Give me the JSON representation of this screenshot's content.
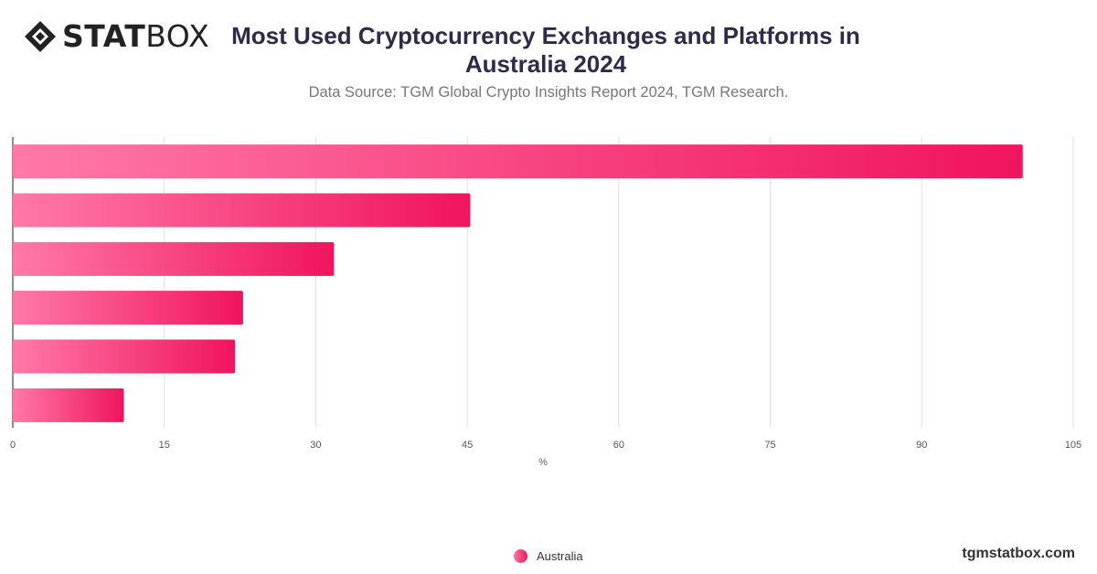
{
  "brand": {
    "logo_prefix": "STAT",
    "logo_suffix": "BOX",
    "website": "tgmstatbox.com"
  },
  "header": {
    "title": "Most Used Cryptocurrency Exchanges and Platforms in Australia 2024",
    "subtitle": "Data Source: TGM Global Crypto Insights Report 2024, TGM Research."
  },
  "colors": {
    "bar_start": "#ff79a8",
    "bar_end": "#f0145e",
    "title": "#2e2a48"
  },
  "legend": {
    "label": "Australia"
  },
  "chart_data": {
    "type": "bar",
    "orientation": "horizontal",
    "categories": [
      "",
      "",
      "",
      "",
      "",
      ""
    ],
    "series": [
      {
        "name": "Australia",
        "values": [
          100,
          45.3,
          31.8,
          22.8,
          22,
          11
        ]
      }
    ],
    "xlabel": "%",
    "ylabel": "",
    "xlim": [
      0,
      105
    ],
    "xticks": [
      0,
      15,
      30,
      45,
      60,
      75,
      90,
      105
    ],
    "grid": "vertical",
    "legend_position": "bottom-center"
  }
}
